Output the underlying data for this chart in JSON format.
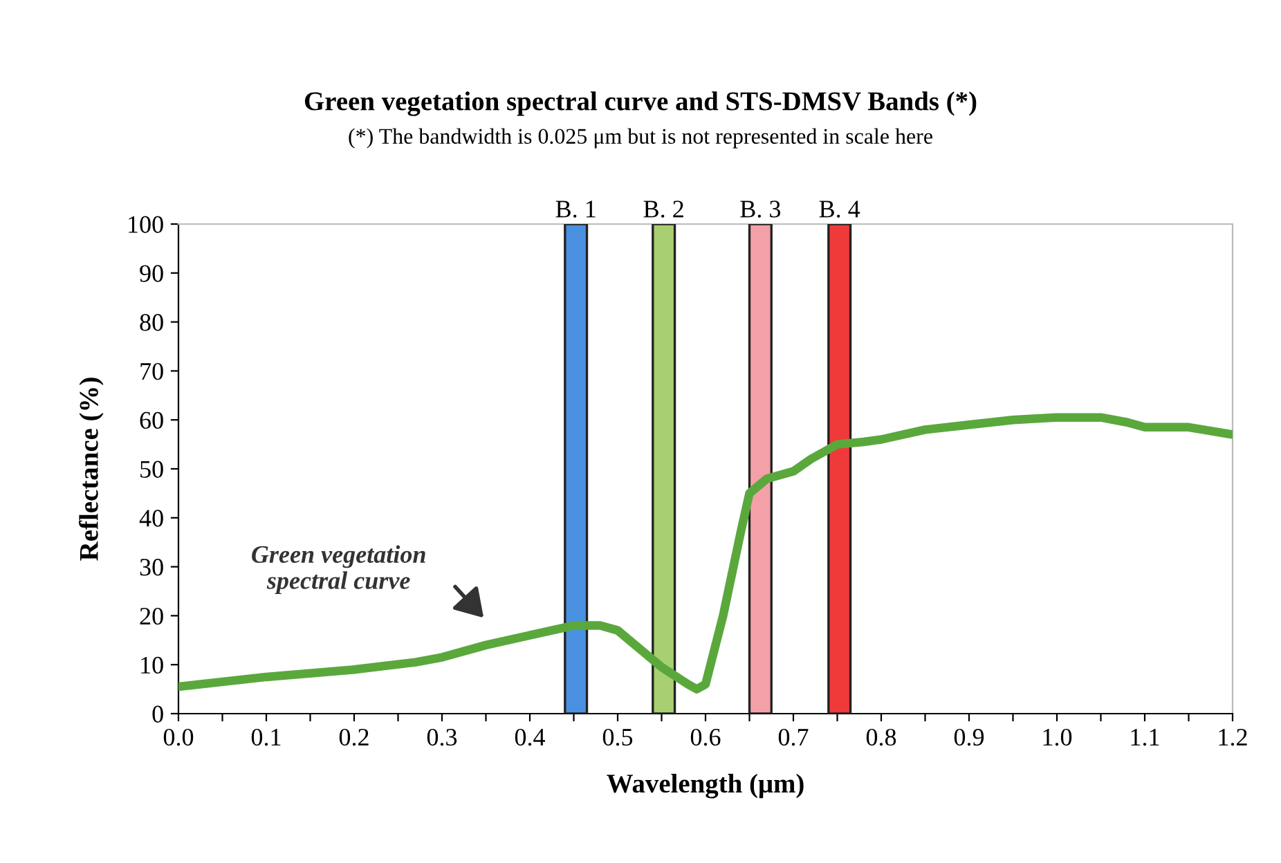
{
  "chart_data": {
    "type": "line",
    "title": "Green vegetation spectral curve and STS-DMSV Bands (*)",
    "subtitle": "(*) The bandwidth is 0.025 μm but is not represented in scale here",
    "xlabel": "Wavelength (μm)",
    "ylabel": "Reflectance (%)",
    "series": [
      {
        "color": "#5aa83c",
        "x": [
          0.0,
          0.1,
          0.2,
          0.27,
          0.3,
          0.35,
          0.4,
          0.45,
          0.48,
          0.5,
          0.52,
          0.55,
          0.58,
          0.59,
          0.6,
          0.62,
          0.64,
          0.65,
          0.67,
          0.7,
          0.72,
          0.75,
          0.78,
          0.8,
          0.85,
          0.9,
          0.95,
          1.0,
          1.05,
          1.08,
          1.1,
          1.15,
          1.2
        ],
        "values": [
          5.5,
          7.5,
          9,
          10.5,
          11.5,
          14,
          16,
          18,
          18,
          17,
          14,
          9.5,
          6,
          5,
          6,
          20,
          37,
          45,
          48,
          49.5,
          52,
          55,
          55.5,
          56,
          58,
          59,
          60,
          60.5,
          60.5,
          59.5,
          58.5,
          58.5,
          57
        ]
      }
    ],
    "bands": [
      {
        "axis": "x",
        "from": 0.44,
        "to": 0.465,
        "label": "B. 1",
        "color": "#4a90e0"
      },
      {
        "axis": "x",
        "from": 0.54,
        "to": 0.565,
        "label": "B. 2",
        "color": "#a8d070"
      },
      {
        "axis": "x",
        "from": 0.65,
        "to": 0.675,
        "label": "B. 3",
        "color": "#f4a0a8"
      },
      {
        "axis": "x",
        "from": 0.74,
        "to": 0.765,
        "label": "B. 4",
        "color": "#f03a3a"
      }
    ],
    "annotations": [
      "Green vegetation\nspectral curve"
    ],
    "xlim": [
      0,
      1.2
    ],
    "ylim": [
      0,
      100
    ],
    "xticks": [
      {
        "value": 0,
        "label": "0.0"
      },
      {
        "value": 0.05,
        "label": null
      },
      {
        "value": 0.1,
        "label": "0.1"
      },
      {
        "value": 0.15,
        "label": null
      },
      {
        "value": 0.2,
        "label": "0.2"
      },
      {
        "value": 0.25,
        "label": null
      },
      {
        "value": 0.3,
        "label": "0.3"
      },
      {
        "value": 0.35,
        "label": null
      },
      {
        "value": 0.4,
        "label": "0.4"
      },
      {
        "value": 0.45,
        "label": null
      },
      {
        "value": 0.5,
        "label": "0.5"
      },
      {
        "value": 0.55,
        "label": null
      },
      {
        "value": 0.6,
        "label": "0.6"
      },
      {
        "value": 0.65,
        "label": null
      },
      {
        "value": 0.7,
        "label": "0.7"
      },
      {
        "value": 0.75,
        "label": null
      },
      {
        "value": 0.8,
        "label": "0.8"
      },
      {
        "value": 0.85,
        "label": null
      },
      {
        "value": 0.9,
        "label": "0.9"
      },
      {
        "value": 0.95,
        "label": null
      },
      {
        "value": 1.0,
        "label": "1.0"
      },
      {
        "value": 1.05,
        "label": null
      },
      {
        "value": 1.1,
        "label": "1.1"
      },
      {
        "value": 1.15,
        "label": null
      },
      {
        "value": 1.2,
        "label": "1.2"
      }
    ],
    "yticks": [
      0,
      10,
      20,
      30,
      40,
      50,
      60,
      70,
      80,
      90,
      100
    ],
    "grid": false,
    "legend": false,
    "marker": "none",
    "line_style": "solid"
  }
}
